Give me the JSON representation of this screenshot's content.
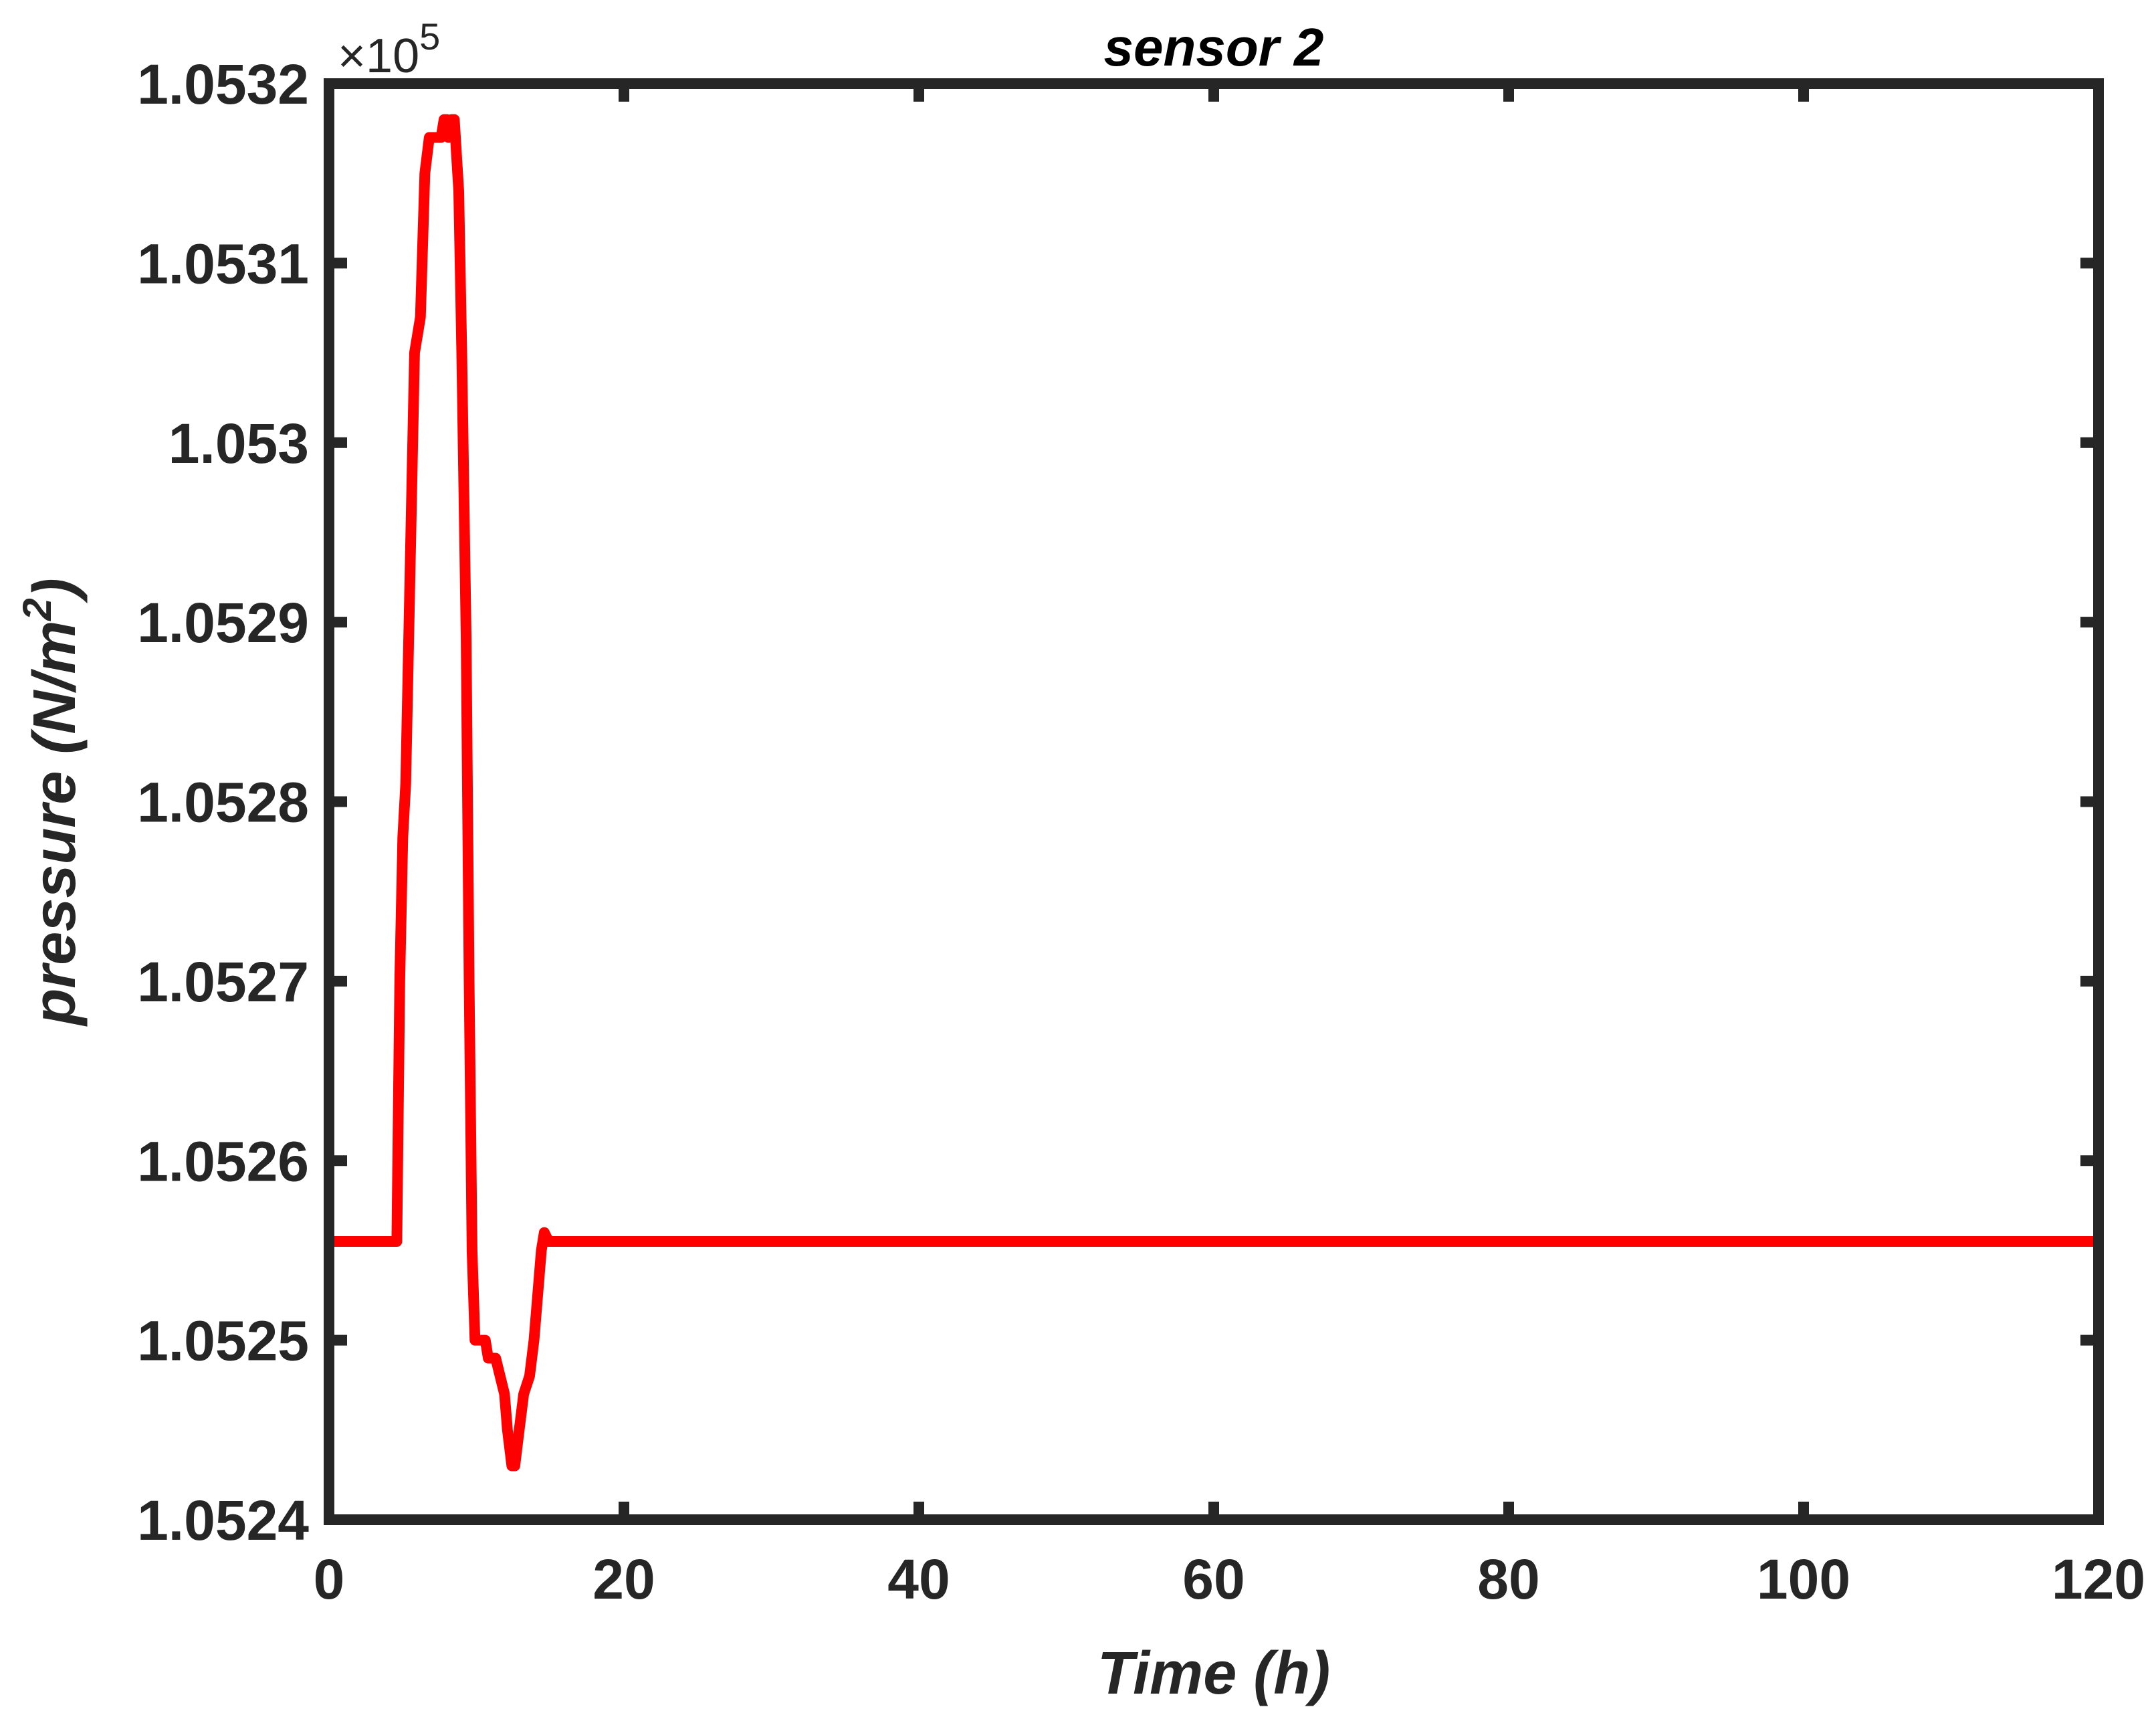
{
  "chart_data": {
    "type": "line",
    "title": "sensor 2",
    "xlabel": "Time (h)",
    "ylabel_main": "pressure (N/m",
    "ylabel_sup": "2",
    "ylabel_close": ")",
    "y_multiplier": "×10",
    "y_multiplier_exp": "5",
    "xlim": [
      0,
      120
    ],
    "ylim": [
      1.0524,
      1.0532
    ],
    "x_ticks": [
      0,
      20,
      40,
      60,
      80,
      100,
      120
    ],
    "x_tick_labels": [
      "0",
      "20",
      "40",
      "60",
      "80",
      "100",
      "120"
    ],
    "y_ticks": [
      1.0524,
      1.0525,
      1.0526,
      1.0527,
      1.0528,
      1.0529,
      1.053,
      1.0531,
      1.0532
    ],
    "y_tick_labels": [
      "1.0524",
      "1.0525",
      "1.0526",
      "1.0527",
      "1.0528",
      "1.0529",
      "1.053",
      "1.0531",
      "1.0532"
    ],
    "grid": false,
    "series": [
      {
        "color": "#ff0000",
        "x": [
          0,
          4.6,
          4.8,
          5.0,
          5.2,
          5.5,
          5.8,
          6.2,
          6.5,
          6.8,
          7.3,
          7.6,
          7.8,
          8.0,
          8.1,
          8.3,
          8.5,
          8.8,
          9.0,
          9.3,
          9.5,
          9.7,
          9.9,
          10.6,
          10.8,
          11.3,
          11.6,
          11.9,
          12.1,
          12.4,
          12.6,
          12.9,
          13.2,
          13.6,
          13.9,
          14.2,
          14.4,
          14.6,
          14.9,
          15.2,
          120
        ],
        "y": [
          1.052555,
          1.052555,
          1.0527,
          1.05278,
          1.05281,
          1.05293,
          1.05305,
          1.05307,
          1.05315,
          1.05317,
          1.05317,
          1.05317,
          1.05318,
          1.05318,
          1.05317,
          1.05318,
          1.05318,
          1.05314,
          1.05305,
          1.05289,
          1.0527,
          1.05255,
          1.0525,
          1.0525,
          1.05249,
          1.05249,
          1.05248,
          1.05247,
          1.05245,
          1.05243,
          1.05243,
          1.05245,
          1.05247,
          1.05248,
          1.0525,
          1.05253,
          1.05255,
          1.05256,
          1.052555,
          1.052555,
          1.052555
        ]
      }
    ]
  }
}
